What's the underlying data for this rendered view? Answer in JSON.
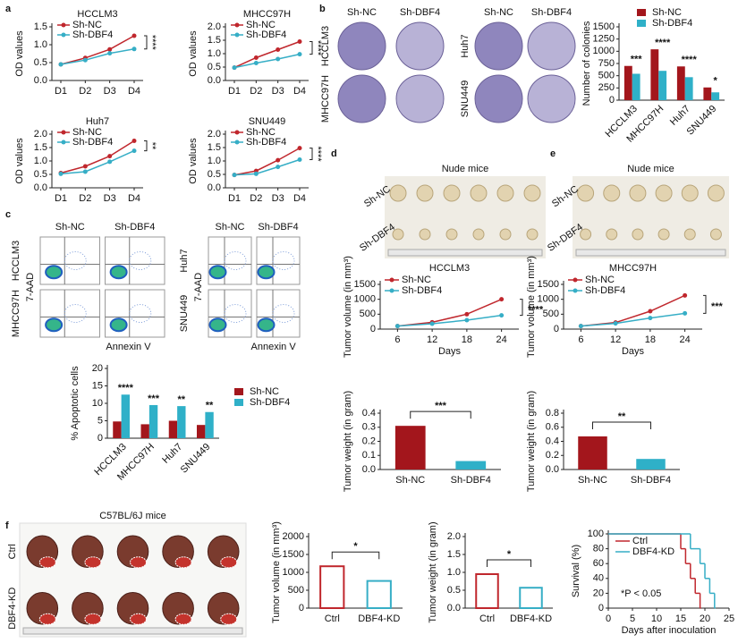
{
  "panel_labels": [
    "a",
    "b",
    "c",
    "d",
    "e",
    "f"
  ],
  "images": [
    {
      "columns": [
        "Sh-NC",
        "Sh-DBF4"
      ],
      "rows": [
        "HCCLM3",
        "MHCC97H"
      ]
    },
    {
      "columns": [
        "Sh-NC",
        "Sh-DBF4"
      ],
      "rows": [
        "Huh7",
        "SNU449"
      ]
    },
    {
      "columns": [
        "Sh-NC",
        "Sh-DBF4"
      ],
      "rows": [
        "HCCLM3",
        "MHCC97H"
      ],
      "y_label": "7-AAD",
      "x_label": "Annexin V"
    },
    {
      "columns": [
        "Sh-NC",
        "Sh-DBF4"
      ],
      "rows": [
        "Huh7",
        "SNU449"
      ],
      "y_label": "7-AAD",
      "x_label": "Annexin V"
    },
    {
      "title": "Nude mice",
      "rows": [
        "Sh-NC",
        "Sh-DBF4"
      ]
    },
    {
      "title": "Nude mice",
      "rows": [
        "Sh-NC",
        "Sh-DBF4"
      ]
    },
    {
      "title": "C57BL/6J mice",
      "rows": [
        "Ctrl",
        "DBF4-KD"
      ]
    }
  ],
  "chart_data": [
    {
      "type": "line",
      "title": "HCCLM3",
      "ylabel": "OD values",
      "categories": [
        "D1",
        "D2",
        "D3",
        "D4"
      ],
      "ylim": [
        0,
        1.5
      ],
      "yticks": [
        {
          "value": 0,
          "label": "0.0"
        },
        {
          "value": 0.5,
          "label": "0.5"
        },
        {
          "value": 1,
          "label": "1.0"
        },
        {
          "value": 1.5,
          "label": "1.5"
        }
      ],
      "series": [
        {
          "name": "Sh-NC",
          "color": "#c0272d",
          "values": [
            0.45,
            0.63,
            0.87,
            1.25
          ]
        },
        {
          "name": "Sh-DBF4",
          "color": "#36aec6",
          "values": [
            0.45,
            0.57,
            0.76,
            0.88
          ]
        }
      ],
      "annotations": [
        "****"
      ]
    },
    {
      "type": "line",
      "title": "MHCC97H",
      "ylabel": "OD values",
      "categories": [
        "D1",
        "D2",
        "D3",
        "D4"
      ],
      "ylim": [
        0,
        2
      ],
      "yticks": [
        {
          "value": 0,
          "label": "0.0"
        },
        {
          "value": 0.5,
          "label": "0.5"
        },
        {
          "value": 1,
          "label": "1.0"
        },
        {
          "value": 1.5,
          "label": "1.5"
        },
        {
          "value": 2,
          "label": "2.0"
        }
      ],
      "series": [
        {
          "name": "Sh-NC",
          "color": "#c0272d",
          "values": [
            0.48,
            0.85,
            1.15,
            1.45
          ]
        },
        {
          "name": "Sh-DBF4",
          "color": "#36aec6",
          "values": [
            0.48,
            0.65,
            0.8,
            0.98
          ]
        }
      ],
      "annotations": [
        "****"
      ]
    },
    {
      "type": "line",
      "title": "Huh7",
      "ylabel": "OD values",
      "categories": [
        "D1",
        "D2",
        "D3",
        "D4"
      ],
      "ylim": [
        0,
        2
      ],
      "yticks": [
        {
          "value": 0,
          "label": "0.0"
        },
        {
          "value": 0.5,
          "label": "0.5"
        },
        {
          "value": 1,
          "label": "1.0"
        },
        {
          "value": 1.5,
          "label": "1.5"
        },
        {
          "value": 2,
          "label": "2.0"
        }
      ],
      "series": [
        {
          "name": "Sh-NC",
          "color": "#c0272d",
          "values": [
            0.55,
            0.8,
            1.18,
            1.75
          ]
        },
        {
          "name": "Sh-DBF4",
          "color": "#36aec6",
          "values": [
            0.52,
            0.6,
            0.97,
            1.38
          ]
        }
      ],
      "annotations": [
        "**"
      ]
    },
    {
      "type": "line",
      "title": "SNU449",
      "ylabel": "OD values",
      "categories": [
        "D1",
        "D2",
        "D3",
        "D4"
      ],
      "ylim": [
        0,
        2
      ],
      "yticks": [
        {
          "value": 0,
          "label": "0.0"
        },
        {
          "value": 0.5,
          "label": "0.5"
        },
        {
          "value": 1,
          "label": "1.0"
        },
        {
          "value": 1.5,
          "label": "1.5"
        },
        {
          "value": 2,
          "label": "2.0"
        }
      ],
      "series": [
        {
          "name": "Sh-NC",
          "color": "#c0272d",
          "values": [
            0.48,
            0.63,
            1.03,
            1.48
          ]
        },
        {
          "name": "Sh-DBF4",
          "color": "#36aec6",
          "values": [
            0.48,
            0.52,
            0.78,
            1.05
          ]
        }
      ],
      "annotations": [
        "****"
      ]
    },
    {
      "type": "bar",
      "ylabel": "Number of colonies",
      "categories": [
        "HCCLM3",
        "MHCC97H",
        "Huh7",
        "SNU449"
      ],
      "ylim": [
        0,
        1500
      ],
      "yticks": [
        0,
        250,
        500,
        750,
        1000,
        1250,
        1500
      ],
      "series": [
        {
          "name": "Sh-NC",
          "color": "#a3161c",
          "values": [
            700,
            1040,
            690,
            260
          ]
        },
        {
          "name": "Sh-DBF4",
          "color": "#2fb0c8",
          "values": [
            540,
            600,
            470,
            160
          ]
        }
      ],
      "annotations": [
        "***",
        "****",
        "****",
        "*"
      ]
    },
    {
      "type": "bar",
      "ylabel": "% Apoptotic cells",
      "categories": [
        "HCCLM3",
        "MHCC97H",
        "Huh7",
        "SNU449"
      ],
      "ylim": [
        0,
        20
      ],
      "yticks": [
        0,
        5,
        10,
        15,
        20
      ],
      "series": [
        {
          "name": "Sh-NC",
          "color": "#a3161c",
          "values": [
            4.8,
            4,
            5,
            3.8
          ]
        },
        {
          "name": "Sh-DBF4",
          "color": "#2fb0c8",
          "values": [
            12.5,
            9.5,
            9.2,
            7.5
          ]
        }
      ],
      "annotations": [
        "****",
        "***",
        "**",
        "**"
      ]
    },
    {
      "type": "line",
      "title": "HCCLM3",
      "xlabel": "Days",
      "ylabel": "Tumor volume (in mm³)",
      "x": [
        6,
        12,
        18,
        24
      ],
      "xlim": [
        3,
        27
      ],
      "xticks": [
        6,
        12,
        18,
        24
      ],
      "ylim": [
        0,
        1500
      ],
      "yticks": [
        0,
        500,
        1000,
        1500
      ],
      "series": [
        {
          "name": "Sh-NC",
          "color": "#c0272d",
          "values": [
            100,
            230,
            500,
            1000
          ]
        },
        {
          "name": "Sh-DBF4",
          "color": "#36aec6",
          "values": [
            100,
            180,
            300,
            460
          ]
        }
      ],
      "annotations": [
        "****"
      ]
    },
    {
      "type": "bar",
      "ylabel": "Tumor weight (in gram)",
      "categories": [
        "Sh-NC",
        "Sh-DBF4"
      ],
      "values": [
        0.31,
        0.06
      ],
      "colors": [
        "#a3161c",
        "#2fb0c8"
      ],
      "ylim": [
        0,
        0.4
      ],
      "yticks": [
        {
          "value": 0,
          "label": "0.0"
        },
        0.1,
        0.2,
        0.3,
        0.4
      ],
      "annotations": [
        "***"
      ]
    },
    {
      "type": "line",
      "title": "MHCC97H",
      "xlabel": "Days",
      "ylabel": "Tumor volume (in mm³)",
      "x": [
        6,
        12,
        18,
        24
      ],
      "xlim": [
        3,
        27
      ],
      "xticks": [
        6,
        12,
        18,
        24
      ],
      "ylim": [
        0,
        1500
      ],
      "yticks": [
        0,
        500,
        1000,
        1500
      ],
      "series": [
        {
          "name": "Sh-NC",
          "color": "#c0272d",
          "values": [
            100,
            220,
            600,
            1130
          ]
        },
        {
          "name": "Sh-DBF4",
          "color": "#36aec6",
          "values": [
            100,
            190,
            370,
            530
          ]
        }
      ],
      "annotations": [
        "***"
      ]
    },
    {
      "type": "bar",
      "ylabel": "Tumor weight (in gram)",
      "categories": [
        "Sh-NC",
        "Sh-DBF4"
      ],
      "values": [
        0.47,
        0.15
      ],
      "colors": [
        "#a3161c",
        "#2fb0c8"
      ],
      "ylim": [
        0,
        0.8
      ],
      "yticks": [
        {
          "value": 0,
          "label": "0.0"
        },
        0.2,
        0.4,
        0.6,
        0.8
      ],
      "annotations": [
        "**"
      ]
    },
    {
      "type": "bar",
      "ylabel": "Tumor volume (in mm³)",
      "categories": [
        "Ctrl",
        "DBF4-KD"
      ],
      "values": [
        1170,
        760
      ],
      "colors": [
        "#c0272d",
        "#36aec6"
      ],
      "bar_style": "outline",
      "ylim": [
        0,
        2000
      ],
      "yticks": [
        0,
        500,
        1000,
        1500,
        2000
      ],
      "annotations": [
        "*"
      ]
    },
    {
      "type": "bar",
      "ylabel": "Tumor weight (in gram)",
      "categories": [
        "Ctrl",
        "DBF4-KD"
      ],
      "values": [
        0.95,
        0.57
      ],
      "colors": [
        "#c0272d",
        "#36aec6"
      ],
      "bar_style": "outline",
      "ylim": [
        0,
        2
      ],
      "yticks": [
        {
          "value": 0,
          "label": "0.0"
        },
        {
          "value": 0.5,
          "label": "0.5"
        },
        {
          "value": 1,
          "label": "1.0"
        },
        {
          "value": 1.5,
          "label": "1.5"
        },
        {
          "value": 2,
          "label": "2.0"
        }
      ],
      "annotations": [
        "*"
      ]
    },
    {
      "type": "step",
      "xlabel": "Days after inoculation",
      "ylabel": "Survival (%)",
      "xlim": [
        0,
        25
      ],
      "xticks": [
        0,
        5,
        10,
        15,
        20,
        25
      ],
      "ylim": [
        0,
        100
      ],
      "yticks": [
        0,
        20,
        40,
        60,
        80,
        100
      ],
      "series": [
        {
          "name": "Ctrl",
          "color": "#c0272d",
          "x": [
            0,
            15,
            16,
            17,
            18,
            19
          ],
          "values": [
            100,
            80,
            60,
            40,
            20,
            0
          ]
        },
        {
          "name": "DBF4-KD",
          "color": "#36aec6",
          "x": [
            0,
            17,
            19,
            20,
            21,
            22
          ],
          "values": [
            100,
            80,
            60,
            40,
            20,
            0
          ]
        }
      ],
      "annotations": [
        "*P < 0.05"
      ]
    }
  ]
}
